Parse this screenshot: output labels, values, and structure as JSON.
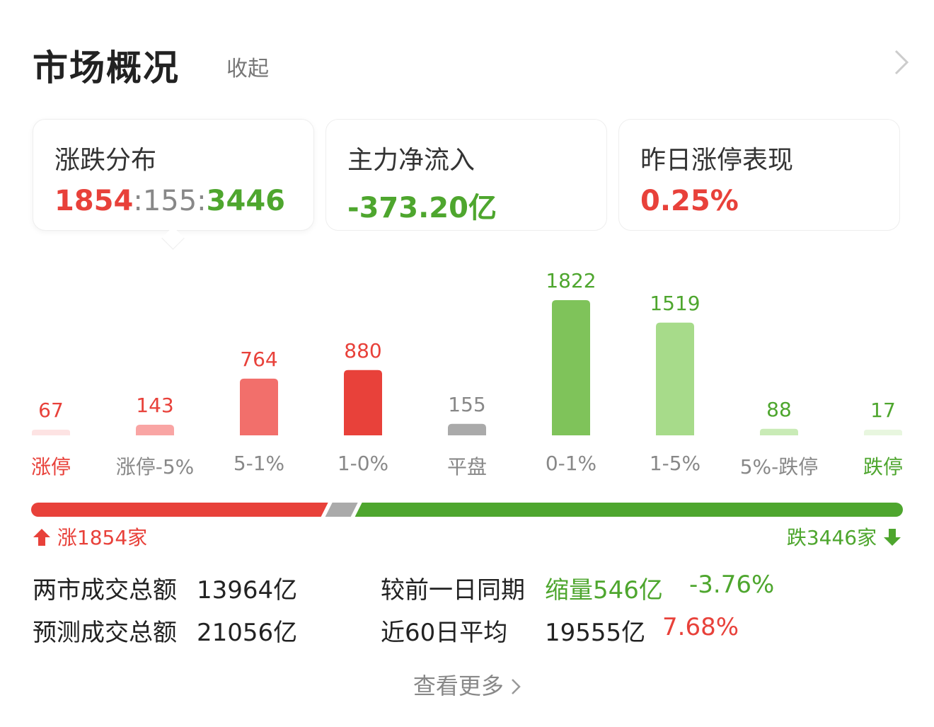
{
  "header": {
    "title": "市场概况",
    "collapse": "收起"
  },
  "cards": [
    {
      "label": "涨跌分布",
      "up": "1854",
      "sep1": ":",
      "flat": "155",
      "sep2": ":",
      "down": "3446"
    },
    {
      "label": "主力净流入",
      "value": "-373.20亿"
    },
    {
      "label": "昨日涨停表现",
      "value": "0.25%"
    }
  ],
  "chart_data": {
    "type": "bar",
    "categories": [
      "涨停",
      "涨停-5%",
      "5-1%",
      "1-0%",
      "平盘",
      "0-1%",
      "1-5%",
      "5%-跌停",
      "跌停"
    ],
    "values": [
      67,
      143,
      764,
      880,
      155,
      1822,
      1519,
      88,
      17
    ],
    "colors": [
      "#fde3e3",
      "#f9a5a4",
      "#f26f6b",
      "#e8413a",
      "#aaaaaa",
      "#7fc35a",
      "#a7db8a",
      "#c9ebb6",
      "#e8f6df"
    ],
    "label_colors": [
      "#e8413a",
      "#e8413a",
      "#e8413a",
      "#e8413a",
      "#888888",
      "#4ea62e",
      "#4ea62e",
      "#4ea62e",
      "#4ea62e"
    ],
    "category_colors": [
      "#e8413a",
      "#888888",
      "#888888",
      "#888888",
      "#888888",
      "#888888",
      "#888888",
      "#888888",
      "#4ea62e"
    ],
    "title": "",
    "xlabel": "",
    "ylabel": ""
  },
  "ratio": {
    "up_count": 1854,
    "flat_count": 155,
    "down_count": 3446,
    "up_text": "涨1854家",
    "down_text": "跌3446家"
  },
  "stats": {
    "total_label": "两市成交总额",
    "total_value": "13964亿",
    "compare_label": "较前一日同期",
    "compare_value": "缩量546亿",
    "compare_pct": "-3.76%",
    "forecast_label": "预测成交总额",
    "forecast_value": "21056亿",
    "avg_label": "近60日平均",
    "avg_value": "19555亿",
    "avg_pct": "7.68%"
  },
  "more_label": "查看更多",
  "colors": {
    "red": "#e8413a",
    "green": "#4ea62e",
    "gray": "#aaaaaa"
  }
}
